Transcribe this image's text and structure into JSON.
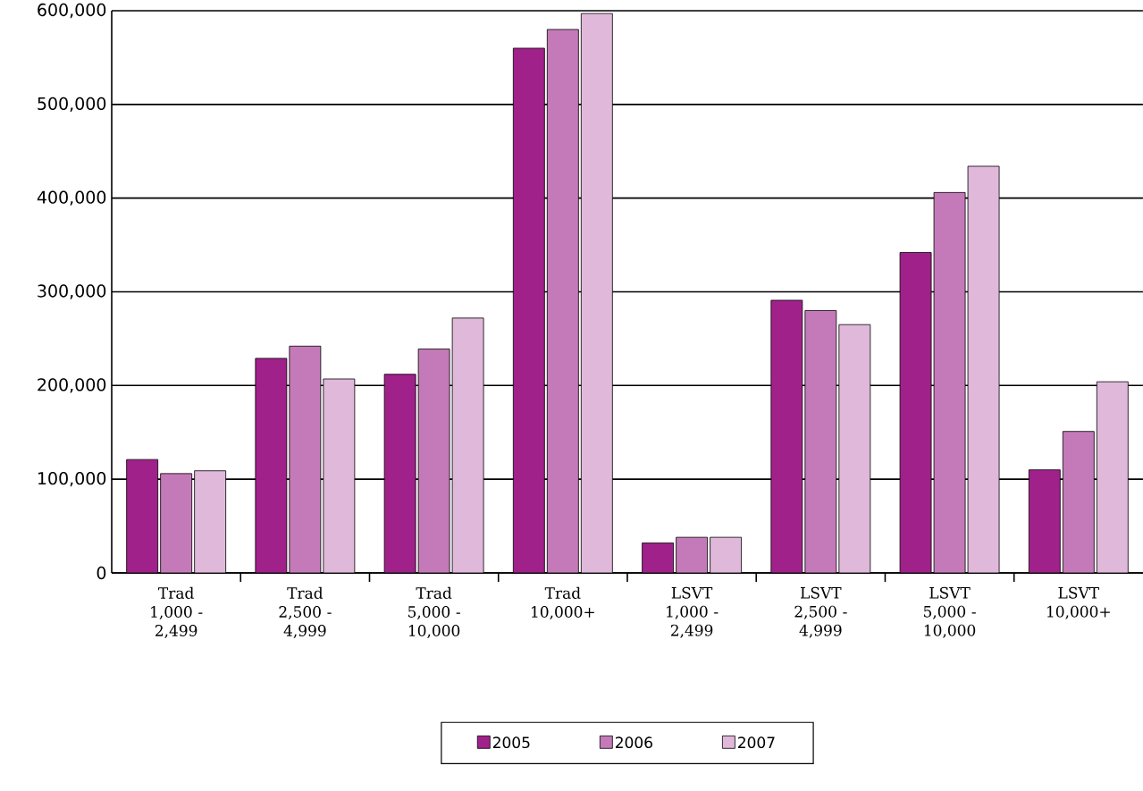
{
  "chart_data": {
    "type": "bar",
    "categories": [
      "Trad 1,000 - 2,499",
      "Trad 2,500 - 4,999",
      "Trad 5,000 - 10,000",
      "Trad 10,000+",
      "LSVT 1,000 - 2,499",
      "LSVT 2,500 - 4,999",
      "LSVT 5,000 - 10,000",
      "LSVT 10,000+"
    ],
    "series": [
      {
        "name": "2005",
        "color": "#a0218a",
        "values": [
          121000,
          229000,
          212000,
          560000,
          32000,
          291000,
          342000,
          110000
        ]
      },
      {
        "name": "2006",
        "color": "#c47ab8",
        "values": [
          106000,
          242000,
          239000,
          580000,
          38000,
          280000,
          406000,
          151000
        ]
      },
      {
        "name": "2007",
        "color": "#e0b8da",
        "values": [
          109000,
          207000,
          272000,
          597000,
          38000,
          265000,
          434000,
          204000
        ]
      }
    ],
    "ylim": [
      0,
      600000
    ],
    "yticks": [
      0,
      {
        "value": 100000,
        "label": "100,000"
      },
      {
        "value": 200000,
        "label": "200,000"
      },
      {
        "value": 300000,
        "label": "300,000"
      },
      {
        "value": 400000,
        "label": "400,000"
      },
      {
        "value": 500000,
        "label": "500,000"
      },
      {
        "value": 600000,
        "label": "600,000"
      }
    ],
    "grid": "y",
    "legend": "bottom"
  }
}
